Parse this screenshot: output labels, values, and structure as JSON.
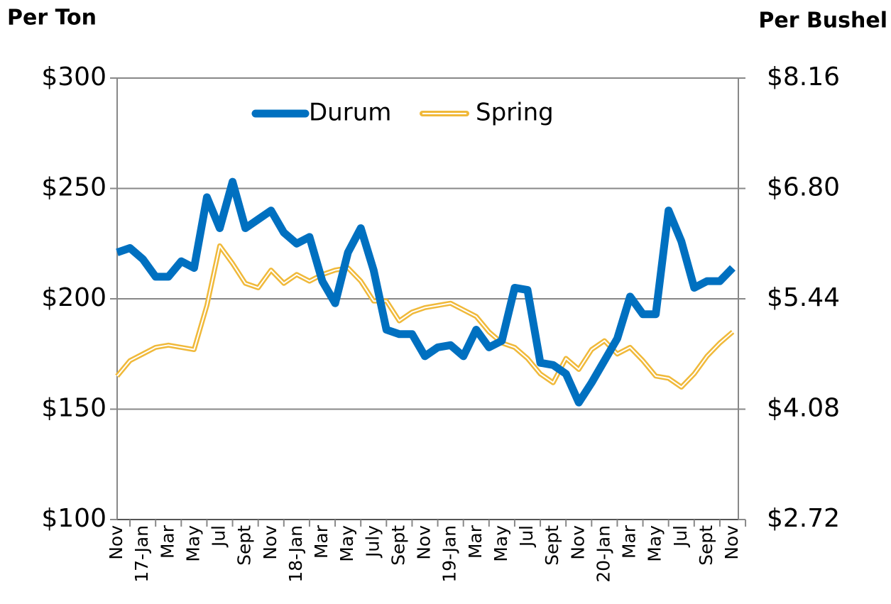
{
  "chart_data": {
    "type": "line",
    "y_axis_title": "Per Ton",
    "y2_axis_title": "Per Bushel",
    "categories": [
      "Nov",
      null,
      "17-Jan",
      null,
      "Mar",
      null,
      "May",
      null,
      "Jul",
      null,
      "Sept",
      null,
      "Nov",
      null,
      "18-Jan",
      null,
      "Mar",
      null,
      "May",
      null,
      "July",
      null,
      "Sept",
      null,
      "Nov",
      null,
      "19-Jan",
      null,
      "Mar",
      null,
      "May",
      null,
      "Jul",
      null,
      "Sept",
      null,
      "Nov",
      null,
      "20-Jan",
      null,
      "Mar",
      null,
      "May",
      null,
      "Jul",
      null,
      "Sept",
      null,
      "Nov"
    ],
    "series": [
      {
        "name": "Durum",
        "color": "#0070c0",
        "values": [
          221,
          223,
          218,
          210,
          210,
          217,
          214,
          246,
          232,
          253,
          232,
          236,
          240,
          230,
          225,
          228,
          208,
          198,
          221,
          232,
          213,
          186,
          184,
          184,
          174,
          178,
          179,
          174,
          186,
          178,
          181,
          205,
          204,
          171,
          170,
          166,
          153,
          162,
          172,
          182,
          201,
          193,
          193,
          240,
          226,
          205,
          208,
          208,
          214
        ]
      },
      {
        "name": "Spring",
        "color": "#f0b93a",
        "values": [
          165,
          172,
          175,
          178,
          179,
          178,
          177,
          197,
          224,
          216,
          207,
          205,
          213,
          207,
          211,
          208,
          211,
          213,
          214,
          208,
          199,
          199,
          190,
          194,
          196,
          197,
          198,
          195,
          192,
          185,
          180,
          178,
          173,
          166,
          162,
          173,
          168,
          177,
          181,
          175,
          178,
          172,
          165,
          164,
          160,
          166,
          174,
          180,
          185
        ]
      }
    ],
    "ylim": [
      100,
      300
    ],
    "yticks": [
      {
        "value": 100,
        "label": "$100"
      },
      {
        "value": 150,
        "label": "$150"
      },
      {
        "value": 200,
        "label": "$200"
      },
      {
        "value": 250,
        "label": "$250"
      },
      {
        "value": 300,
        "label": "$300"
      }
    ],
    "y2lim": [
      2.72,
      8.16
    ],
    "y2ticks": [
      {
        "value": 2.72,
        "label": "$2.72"
      },
      {
        "value": 4.08,
        "label": "$4.08"
      },
      {
        "value": 5.44,
        "label": "$5.44"
      },
      {
        "value": 6.8,
        "label": "$6.80"
      },
      {
        "value": 8.16,
        "label": "$8.16"
      }
    ],
    "grid": true,
    "legend": "top"
  }
}
